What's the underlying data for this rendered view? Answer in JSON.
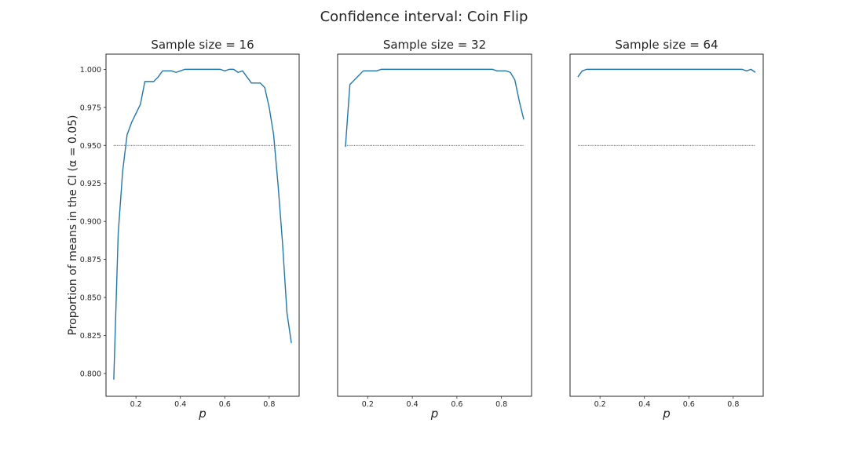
{
  "figure": {
    "title": "Confidence interval: Coin Flip",
    "ylabel": "Proportion of means in the CI (α = 0.05)"
  },
  "chart_data": [
    {
      "type": "line",
      "title": "Sample size = 16",
      "xlabel": "p",
      "ylabel": "Proportion of means in the CI (α = 0.05)",
      "xlim": [
        0.065,
        0.935
      ],
      "ylim": [
        0.785,
        1.01
      ],
      "xticks": [
        0.2,
        0.4,
        0.6,
        0.8
      ],
      "xtick_labels": [
        "0.2",
        "0.4",
        "0.6",
        "0.8"
      ],
      "yticks": [
        0.8,
        0.825,
        0.85,
        0.875,
        0.9,
        0.925,
        0.95,
        0.975,
        1.0
      ],
      "ytick_labels": [
        "0.800",
        "0.825",
        "0.850",
        "0.875",
        "0.900",
        "0.925",
        "0.950",
        "0.975",
        "1.000"
      ],
      "reference_line": {
        "y": 0.95,
        "x_range": [
          0.1,
          0.9
        ]
      },
      "series": [
        {
          "x": [
            0.1,
            0.12,
            0.14,
            0.16,
            0.18,
            0.2,
            0.22,
            0.24,
            0.26,
            0.28,
            0.3,
            0.32,
            0.34,
            0.36,
            0.38,
            0.4,
            0.42,
            0.44,
            0.46,
            0.48,
            0.5,
            0.52,
            0.54,
            0.56,
            0.58,
            0.6,
            0.62,
            0.64,
            0.66,
            0.68,
            0.7,
            0.72,
            0.74,
            0.76,
            0.78,
            0.8,
            0.82,
            0.84,
            0.86,
            0.88,
            0.9
          ],
          "values": [
            0.796,
            0.892,
            0.933,
            0.957,
            0.965,
            0.971,
            0.977,
            0.992,
            0.992,
            0.992,
            0.995,
            0.999,
            0.999,
            0.999,
            0.998,
            0.999,
            1.0,
            1.0,
            1.0,
            1.0,
            1.0,
            1.0,
            1.0,
            1.0,
            1.0,
            0.999,
            1.0,
            1.0,
            0.998,
            0.999,
            0.995,
            0.991,
            0.991,
            0.991,
            0.988,
            0.975,
            0.957,
            0.924,
            0.886,
            0.84,
            0.82
          ]
        }
      ]
    },
    {
      "type": "line",
      "title": "Sample size = 32",
      "xlabel": "p",
      "xlim": [
        0.065,
        0.935
      ],
      "ylim": [
        0.785,
        1.01
      ],
      "xticks": [
        0.2,
        0.4,
        0.6,
        0.8
      ],
      "xtick_labels": [
        "0.2",
        "0.4",
        "0.6",
        "0.8"
      ],
      "reference_line": {
        "y": 0.95,
        "x_range": [
          0.1,
          0.9
        ]
      },
      "series": [
        {
          "x": [
            0.1,
            0.12,
            0.14,
            0.16,
            0.18,
            0.2,
            0.22,
            0.24,
            0.26,
            0.28,
            0.3,
            0.32,
            0.34,
            0.36,
            0.38,
            0.4,
            0.42,
            0.44,
            0.46,
            0.48,
            0.5,
            0.52,
            0.54,
            0.56,
            0.58,
            0.6,
            0.62,
            0.64,
            0.66,
            0.68,
            0.7,
            0.72,
            0.74,
            0.76,
            0.78,
            0.8,
            0.82,
            0.84,
            0.86,
            0.88,
            0.9
          ],
          "values": [
            0.949,
            0.99,
            0.993,
            0.996,
            0.999,
            0.999,
            0.999,
            0.999,
            1.0,
            1.0,
            1.0,
            1.0,
            1.0,
            1.0,
            1.0,
            1.0,
            1.0,
            1.0,
            1.0,
            1.0,
            1.0,
            1.0,
            1.0,
            1.0,
            1.0,
            1.0,
            1.0,
            1.0,
            1.0,
            1.0,
            1.0,
            1.0,
            1.0,
            1.0,
            0.999,
            0.999,
            0.999,
            0.998,
            0.993,
            0.979,
            0.967
          ]
        }
      ]
    },
    {
      "type": "line",
      "title": "Sample size = 64",
      "xlabel": "p",
      "xlim": [
        0.065,
        0.935
      ],
      "ylim": [
        0.785,
        1.01
      ],
      "xticks": [
        0.2,
        0.4,
        0.6,
        0.8
      ],
      "xtick_labels": [
        "0.2",
        "0.4",
        "0.6",
        "0.8"
      ],
      "reference_line": {
        "y": 0.95,
        "x_range": [
          0.1,
          0.9
        ]
      },
      "series": [
        {
          "x": [
            0.1,
            0.12,
            0.14,
            0.16,
            0.18,
            0.2,
            0.22,
            0.24,
            0.26,
            0.28,
            0.3,
            0.32,
            0.34,
            0.36,
            0.38,
            0.4,
            0.42,
            0.44,
            0.46,
            0.48,
            0.5,
            0.52,
            0.54,
            0.56,
            0.58,
            0.6,
            0.62,
            0.64,
            0.66,
            0.68,
            0.7,
            0.72,
            0.74,
            0.76,
            0.78,
            0.8,
            0.82,
            0.84,
            0.86,
            0.88,
            0.9
          ],
          "values": [
            0.995,
            0.999,
            1.0,
            1.0,
            1.0,
            1.0,
            1.0,
            1.0,
            1.0,
            1.0,
            1.0,
            1.0,
            1.0,
            1.0,
            1.0,
            1.0,
            1.0,
            1.0,
            1.0,
            1.0,
            1.0,
            1.0,
            1.0,
            1.0,
            1.0,
            1.0,
            1.0,
            1.0,
            1.0,
            1.0,
            1.0,
            1.0,
            1.0,
            1.0,
            1.0,
            1.0,
            1.0,
            1.0,
            0.999,
            1.0,
            0.998
          ]
        }
      ]
    }
  ]
}
